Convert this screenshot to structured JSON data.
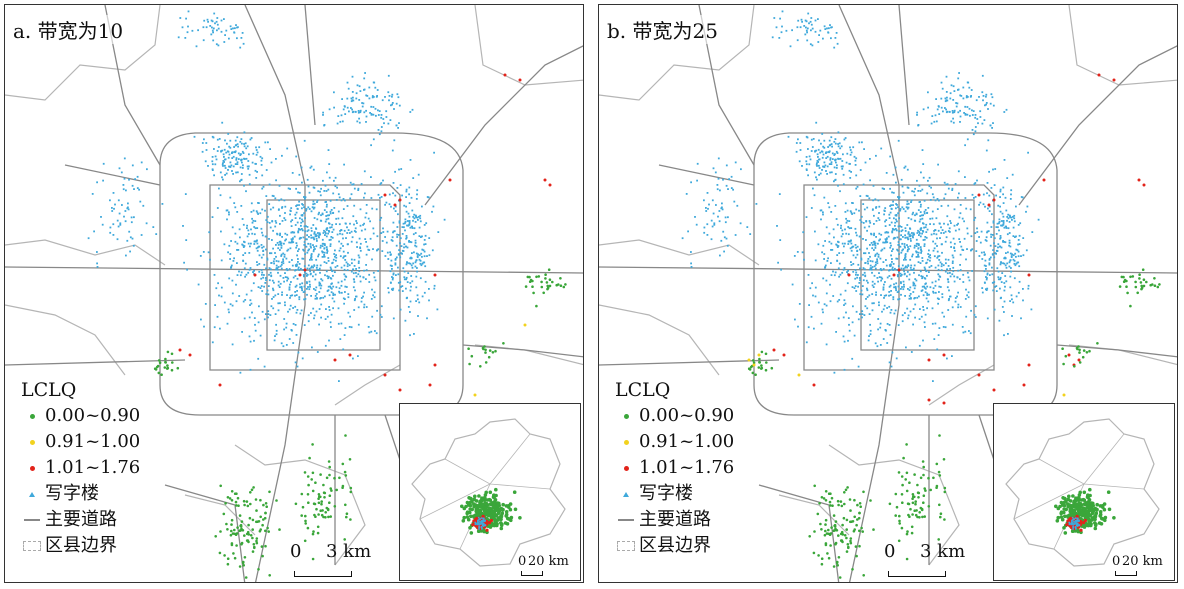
{
  "panels": [
    {
      "title": "a. 带宽为10"
    },
    {
      "title": "b. 带宽为25"
    }
  ],
  "legend": {
    "heading": "LCLQ",
    "items": [
      {
        "label": "0.00~0.90",
        "color": "#3aa63a",
        "symbol": "dot"
      },
      {
        "label": "0.91~1.00",
        "color": "#f2d21e",
        "symbol": "dot"
      },
      {
        "label": "1.01~1.76",
        "color": "#e2231a",
        "symbol": "dot"
      },
      {
        "label": "写字楼",
        "color": "#3fa9db",
        "symbol": "triangle"
      },
      {
        "label": "主要道路",
        "color": "#888888",
        "symbol": "line"
      },
      {
        "label": "区县边界",
        "color": "#aaaaaa",
        "symbol": "dashed-box"
      }
    ]
  },
  "scale_bar": {
    "zero": "0",
    "distance": "3 km"
  },
  "inset_scale_bar": {
    "zero": "0",
    "distance": "20 km"
  },
  "colors": {
    "road": "#888888",
    "boundary": "#b5b5b5",
    "office": "#3fa9db",
    "low": "#3aa63a",
    "mid": "#f2d21e",
    "high": "#e2231a"
  }
}
